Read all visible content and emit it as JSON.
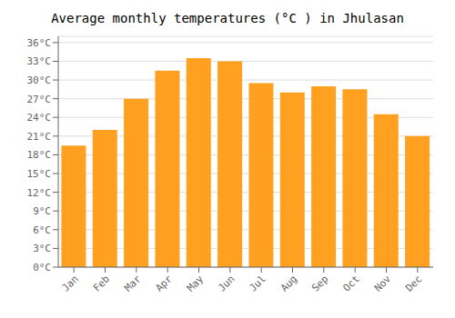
{
  "chart_data": {
    "type": "bar",
    "title": "Average monthly temperatures (°C ) in Jhulasan",
    "categories": [
      "Jan",
      "Feb",
      "Mar",
      "Apr",
      "May",
      "Jun",
      "Jul",
      "Aug",
      "Sep",
      "Oct",
      "Nov",
      "Dec"
    ],
    "values": [
      19.5,
      22.0,
      27.0,
      31.5,
      33.5,
      33.0,
      29.5,
      28.0,
      29.0,
      28.5,
      24.5,
      21.0
    ],
    "color": "#FFA020",
    "ylim": [
      0,
      37
    ],
    "yticks": [
      {
        "value": 0,
        "label": "0°C"
      },
      {
        "value": 3,
        "label": "3°C"
      },
      {
        "value": 6,
        "label": "6°C"
      },
      {
        "value": 9,
        "label": "9°C"
      },
      {
        "value": 12,
        "label": "12°C"
      },
      {
        "value": 15,
        "label": "15°C"
      },
      {
        "value": 18,
        "label": "18°C"
      },
      {
        "value": 21,
        "label": "21°C"
      },
      {
        "value": 24,
        "label": "24°C"
      },
      {
        "value": 27,
        "label": "27°C"
      },
      {
        "value": 30,
        "label": "30°C"
      },
      {
        "value": 33,
        "label": "33°C"
      },
      {
        "value": 36,
        "label": "36°C"
      }
    ],
    "grid": true
  }
}
